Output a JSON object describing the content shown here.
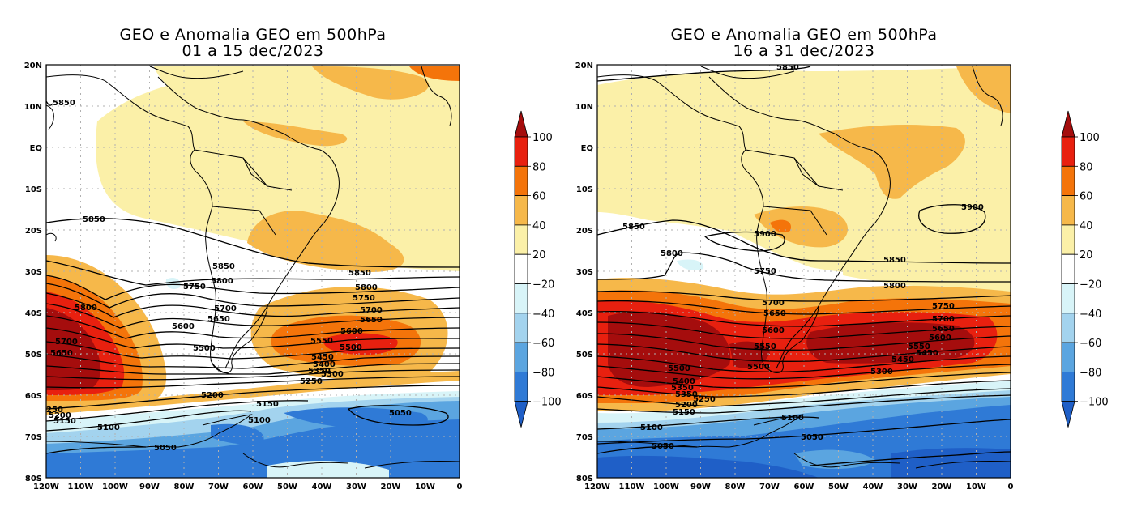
{
  "panels": [
    {
      "title_line1": "GEO e Anomalia GEO em 500hPa",
      "title_line2": "01 a 15 dec/2023",
      "contour_labels": [
        "5850",
        "5850",
        "5850",
        "5850",
        "5800",
        "5800",
        "5800",
        "5750",
        "5750",
        "5700",
        "5700",
        "5700",
        "5650",
        "5650",
        "5650",
        "5600",
        "5600",
        "5550",
        "5500",
        "5500",
        "5450",
        "5400",
        "5350",
        "5300",
        "5250",
        "5200",
        "5200",
        "5150",
        "5150",
        "5100",
        "5100",
        "5050",
        "5050",
        "250",
        "5200",
        "5150"
      ]
    },
    {
      "title_line1": "GEO e Anomalia GEO em 500hPa",
      "title_line2": "16 a 31 dec/2023",
      "contour_labels": [
        "5850",
        "5850",
        "5850",
        "5900",
        "5900",
        "5800",
        "5800",
        "5750",
        "5750",
        "5700",
        "5700",
        "5650",
        "5650",
        "5600",
        "5600",
        "5550",
        "5550",
        "5500",
        "5500",
        "5450",
        "5450",
        "5400",
        "5350",
        "5350",
        "5300",
        "5250",
        "5200",
        "5150",
        "5100",
        "5100",
        "5050",
        "5050"
      ]
    }
  ],
  "axes": {
    "lat_ticks": [
      "20N",
      "10N",
      "EQ",
      "10S",
      "20S",
      "30S",
      "40S",
      "50S",
      "60S",
      "70S",
      "80S"
    ],
    "lon_ticks": [
      "120W",
      "110W",
      "100W",
      "90W",
      "80W",
      "70W",
      "60W",
      "50W",
      "40W",
      "30W",
      "20W",
      "10W",
      "0"
    ]
  },
  "colorbar": {
    "labels": [
      "100",
      "80",
      "60",
      "40",
      "20",
      "−20",
      "−40",
      "−60",
      "−80",
      "−100"
    ],
    "colors": [
      "#a50d0d",
      "#e8200f",
      "#f4740a",
      "#f6b84a",
      "#fbf0a8",
      "#ffffff",
      "#d8f4f8",
      "#a3d3ee",
      "#5ba5e0",
      "#2f7ad6",
      "#1f5fc7"
    ]
  }
}
